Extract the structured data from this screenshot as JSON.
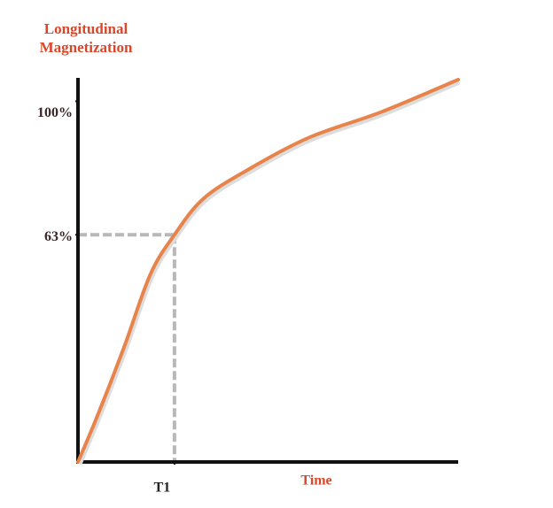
{
  "chart_data": {
    "type": "line",
    "y_label": "Longitudinal Magnetization",
    "x_label": "Time",
    "x": [
      0,
      0.2,
      0.48,
      0.75,
      1,
      1.3,
      1.76,
      2.4,
      3.14,
      3.94
    ],
    "series": [
      {
        "color": "#e8834a",
        "values": [
          0,
          12.7,
          32,
          52,
          63,
          73,
          81,
          90,
          97,
          106
        ]
      }
    ],
    "xlim": [
      0,
      3.94
    ],
    "ylim": [
      0,
      106
    ],
    "xticks": [
      {
        "value": 1,
        "label": "T1"
      }
    ],
    "yticks": [
      {
        "value": 63,
        "label": "63%"
      },
      {
        "value": 100,
        "label": "100%"
      }
    ],
    "guide_color": "#b8b8b8"
  }
}
